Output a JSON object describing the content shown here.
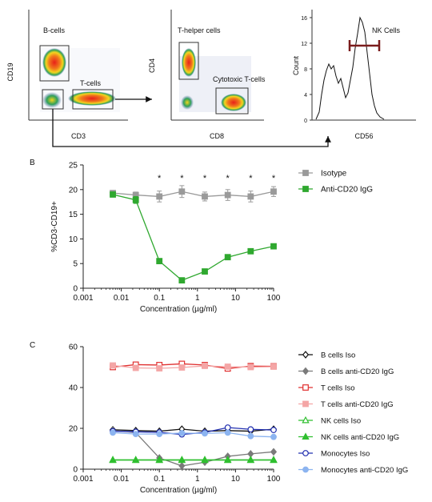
{
  "panel_labels": {
    "b": "B",
    "c": "C"
  },
  "top_row": {
    "flow1": {
      "ylabel": "CD19",
      "xlabel": "CD3",
      "gate_bcells": "B-cells",
      "gate_tcells": "T-cells"
    },
    "flow2": {
      "ylabel": "CD4",
      "xlabel": "CD8",
      "gate_helper": "T-helper cells",
      "gate_cytotoxic": "Cytotoxic T-cells"
    },
    "histogram": {
      "ylabel": "Count",
      "xlabel": "CD56",
      "gate": "NK Cells",
      "y_ticks": [
        "0",
        "4",
        "8",
        "12",
        "16"
      ]
    },
    "colors": {
      "arrow": "#111111",
      "nk_gate": "#7a1c1c",
      "density_hot": "#e8201a",
      "density_mid": "#f4d51e",
      "density_cool": "#2ca05a",
      "events": "#5a6cb0"
    }
  },
  "chart_data": [
    {
      "type": "line",
      "panel": "B",
      "ylabel": "%CD3-CD19+",
      "xlabel": "Concentration (µg/ml)",
      "xscale": "log",
      "xlim": [
        0.001,
        100
      ],
      "ylim": [
        0,
        25
      ],
      "x_ticks": [
        0.001,
        0.01,
        0.1,
        1,
        10,
        100
      ],
      "x_tick_labels": [
        "0.001",
        "0.01",
        "0.1",
        "1",
        "10",
        "100"
      ],
      "y_ticks": [
        0,
        5,
        10,
        15,
        20,
        25
      ],
      "y_tick_labels": [
        "0",
        "5",
        "10",
        "15",
        "20",
        "25"
      ],
      "legend_position": "top-right",
      "x": [
        0.006,
        0.024,
        0.1,
        0.39,
        1.56,
        6.25,
        25,
        100
      ],
      "series": [
        {
          "name": "Isotype",
          "color": "#9a9a9a",
          "marker": "square",
          "values": [
            19.3,
            18.9,
            18.6,
            19.6,
            18.6,
            18.9,
            18.6,
            19.6
          ],
          "errors": [
            0.5,
            0.6,
            1.1,
            1.2,
            0.9,
            1.1,
            1.1,
            1.0
          ]
        },
        {
          "name": "Anti-CD20 IgG",
          "color": "#2fa82f",
          "marker": "square",
          "values": [
            19.0,
            17.9,
            5.5,
            1.6,
            3.4,
            6.3,
            7.5,
            8.5
          ],
          "errors": [
            0.4,
            0.7,
            0.3,
            0.1,
            0.2,
            0.3,
            0.4,
            0.4
          ]
        }
      ],
      "significance_x": [
        0.1,
        0.39,
        1.56,
        6.25,
        25,
        100
      ],
      "significance_mark": "*"
    },
    {
      "type": "line",
      "panel": "C",
      "xlabel": "Concentration (µg/ml)",
      "xscale": "log",
      "xlim": [
        0.001,
        100
      ],
      "ylim": [
        0,
        60
      ],
      "x_ticks": [
        0.001,
        0.01,
        0.1,
        1,
        10,
        100
      ],
      "x_tick_labels": [
        "0.001",
        "0.01",
        "0.1",
        "1",
        "10",
        "100"
      ],
      "y_ticks": [
        0,
        20,
        40,
        60
      ],
      "y_tick_labels": [
        "0",
        "20",
        "40",
        "60"
      ],
      "legend_position": "right",
      "x": [
        0.006,
        0.024,
        0.1,
        0.39,
        1.56,
        6.25,
        25,
        100
      ],
      "series": [
        {
          "name": "B cells Iso",
          "color": "#111111",
          "marker": "diamond-open",
          "values": [
            19.3,
            18.9,
            18.6,
            19.6,
            18.6,
            18.9,
            18.6,
            19.6
          ]
        },
        {
          "name": "B cells anti-CD20 IgG",
          "color": "#7a7a7a",
          "marker": "diamond",
          "values": [
            19.0,
            17.9,
            5.5,
            1.6,
            3.4,
            6.3,
            7.5,
            8.5
          ]
        },
        {
          "name": "T cells Iso",
          "color": "#e03030",
          "marker": "square-open",
          "values": [
            50.0,
            51.2,
            51.0,
            51.6,
            51.0,
            49.3,
            50.5,
            50.4
          ]
        },
        {
          "name": "T cells anti-CD20 IgG",
          "color": "#f4a6a6",
          "marker": "square",
          "values": [
            50.8,
            49.6,
            49.4,
            49.8,
            50.6,
            50.2,
            50.0,
            50.2
          ]
        },
        {
          "name": "NK cells Iso",
          "color": "#2fbf2f",
          "marker": "triangle-open",
          "values": [
            4.6,
            4.6,
            4.6,
            4.6,
            4.6,
            4.6,
            4.6,
            4.6
          ]
        },
        {
          "name": "NK cells anti-CD20 IgG",
          "color": "#2fbf2f",
          "marker": "triangle",
          "values": [
            4.4,
            4.4,
            4.4,
            4.4,
            4.4,
            4.4,
            4.4,
            4.4
          ]
        },
        {
          "name": "Monocytes Iso",
          "color": "#2230b0",
          "marker": "circle-open",
          "values": [
            18.6,
            18.3,
            18.0,
            17.0,
            18.0,
            20.4,
            19.5,
            19.2
          ]
        },
        {
          "name": "Monocytes anti-CD20 IgG",
          "color": "#8cb4f0",
          "marker": "circle",
          "values": [
            17.9,
            17.2,
            17.2,
            17.7,
            17.5,
            17.9,
            16.2,
            15.8
          ]
        }
      ]
    }
  ]
}
